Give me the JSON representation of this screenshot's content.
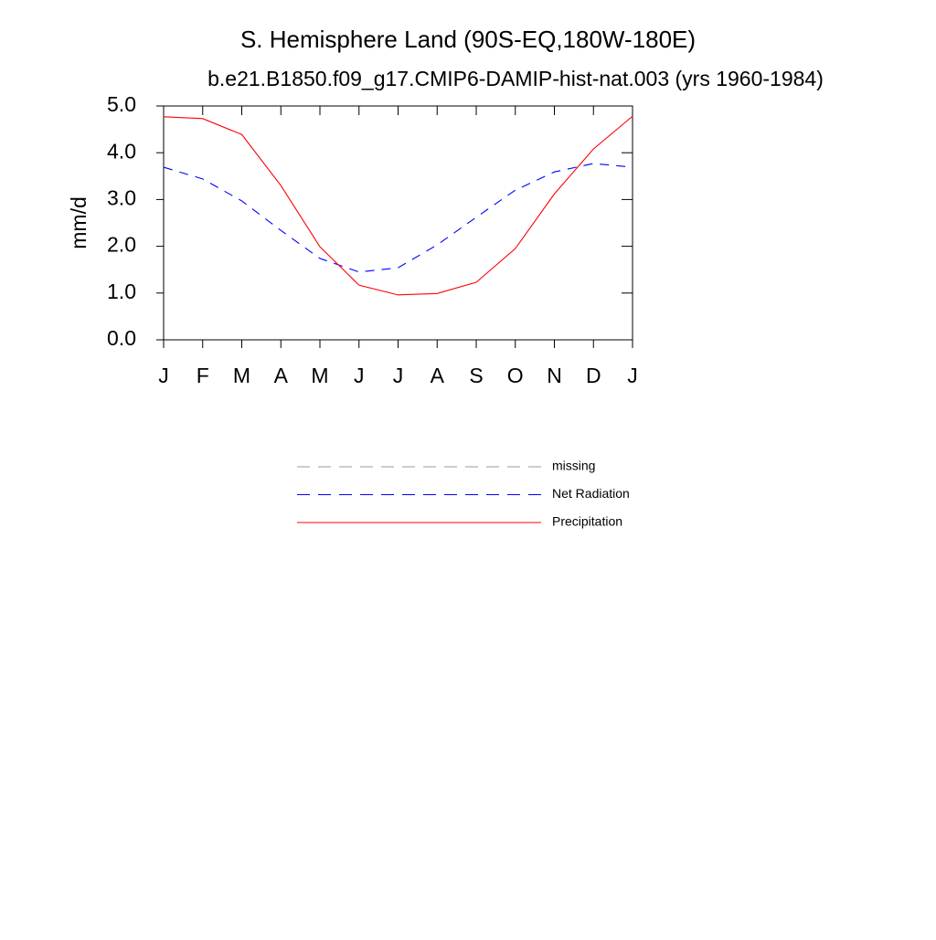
{
  "chart_data": {
    "type": "line",
    "title": "S. Hemisphere Land (90S-EQ,180W-180E)",
    "subtitle": "b.e21.B1850.f09_g17.CMIP6-DAMIP-hist-nat.003 (yrs 1960-1984)",
    "y_label": "mm/d",
    "categories": [
      "J",
      "F",
      "M",
      "A",
      "M",
      "J",
      "J",
      "A",
      "S",
      "O",
      "N",
      "D",
      "J"
    ],
    "series": [
      {
        "name": "missing",
        "color": "#999999",
        "dash": true,
        "values": [
          null,
          null,
          null,
          null,
          null,
          null,
          null,
          null,
          null,
          null,
          null,
          null,
          null
        ]
      },
      {
        "name": "Net Radiation",
        "color": "#0000ff",
        "dash": true,
        "values": [
          3.69,
          3.44,
          2.97,
          2.34,
          1.74,
          1.45,
          1.54,
          2.03,
          2.62,
          3.2,
          3.59,
          3.77,
          3.69
        ]
      },
      {
        "name": "Precipitation",
        "color": "#ff0000",
        "dash": false,
        "values": [
          4.77,
          4.73,
          4.39,
          3.3,
          1.99,
          1.17,
          0.96,
          0.99,
          1.23,
          1.95,
          3.12,
          4.08,
          4.78
        ]
      }
    ],
    "ylim": [
      0,
      5
    ],
    "yticks": [
      {
        "value": 0,
        "label": "0.0"
      },
      {
        "value": 1,
        "label": "1.0"
      },
      {
        "value": 2,
        "label": "2.0"
      },
      {
        "value": 3,
        "label": "3.0"
      },
      {
        "value": 4,
        "label": "4.0"
      },
      {
        "value": 5,
        "label": "5.0"
      }
    ],
    "grid": false
  }
}
